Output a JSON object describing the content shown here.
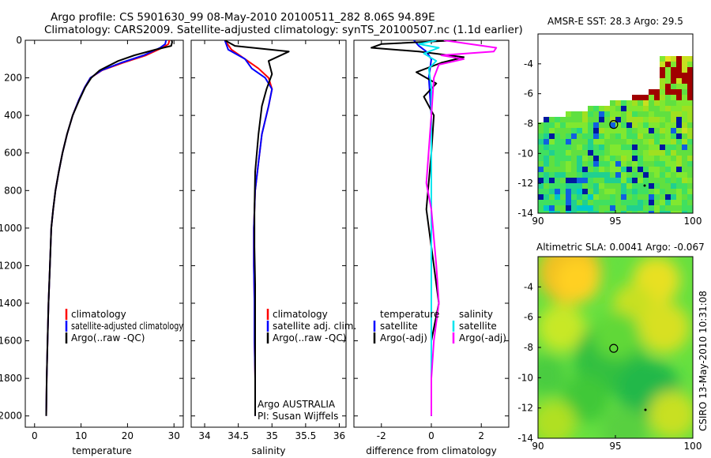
{
  "figure": {
    "title_line1": "Argo profile: CS 5901630_99 08-May-2010 20100511_282 8.06S 94.89E",
    "title_line2": "Climatology: CARS2009. Satellite-adjusted climatology: synTS_20100507.nc (1.1d earlier)",
    "footer_credit": "CSIRO 13-May-2010 10:31:08"
  },
  "chart_data": [
    {
      "id": "temp",
      "type": "line",
      "xlabel": "temperature",
      "xlim": [
        -2,
        32
      ],
      "ylim": [
        0,
        2060
      ],
      "xticks": [
        "0",
        "10",
        "20",
        "30"
      ],
      "yticks": [
        "0",
        "200",
        "400",
        "600",
        "800",
        "1000",
        "1200",
        "1400",
        "1600",
        "1800",
        "2000"
      ],
      "legend": [
        "climatology",
        "satellite-adjusted climatology",
        "Argo(..raw -QC)"
      ],
      "series": [
        {
          "name": "climatology",
          "color": "#ff0000",
          "x": [
            29.0,
            28.8,
            27.5,
            24.0,
            19.0,
            14.5,
            12.0,
            10.8,
            9.5,
            8.2,
            7.0,
            6.0,
            5.2,
            4.5,
            4.0,
            3.6,
            3.3,
            3.0,
            2.8,
            2.6,
            2.5
          ],
          "depth": [
            0,
            20,
            40,
            80,
            120,
            160,
            200,
            250,
            320,
            400,
            500,
            600,
            700,
            800,
            900,
            1000,
            1200,
            1400,
            1600,
            1800,
            2000
          ]
        },
        {
          "name": "satellite-adjusted climatology",
          "color": "#0000ff",
          "x": [
            28.3,
            28.1,
            27.0,
            23.5,
            18.6,
            14.4,
            12.0,
            10.8,
            9.5,
            8.2,
            7.0,
            6.0,
            5.2,
            4.5,
            4.0,
            3.6,
            3.3,
            3.0,
            2.8,
            2.6,
            2.5
          ],
          "depth": [
            0,
            20,
            40,
            80,
            120,
            160,
            200,
            250,
            320,
            400,
            500,
            600,
            700,
            800,
            900,
            1000,
            1200,
            1400,
            1600,
            1800,
            2000
          ]
        },
        {
          "name": "Argo(..raw -QC)",
          "color": "#000000",
          "x": [
            29.5,
            29.6,
            29.4,
            26.0,
            21.5,
            18.0,
            14.0,
            12.2,
            10.9,
            9.6,
            8.2,
            7.0,
            6.0,
            5.2,
            4.5,
            4.0,
            3.6,
            3.3,
            3.0,
            2.8,
            2.6,
            2.5
          ],
          "depth": [
            0,
            10,
            30,
            50,
            80,
            110,
            160,
            200,
            250,
            320,
            400,
            500,
            600,
            700,
            800,
            900,
            1000,
            1200,
            1400,
            1600,
            1800,
            2000
          ]
        }
      ]
    },
    {
      "id": "sal",
      "type": "line",
      "xlabel": "salinity",
      "xlim": [
        33.8,
        36.1
      ],
      "ylim": [
        0,
        2060
      ],
      "xticks": [
        "34",
        "34.5",
        "35",
        "35.5",
        "36"
      ],
      "legend": [
        "climatology",
        "satellite adj. clim.",
        "Argo(..raw -QC)"
      ],
      "annotation": [
        "Argo AUSTRALIA",
        "PI: Susan Wijffels"
      ],
      "series": [
        {
          "name": "climatology",
          "color": "#ff0000",
          "x": [
            34.3,
            34.4,
            34.6,
            34.8,
            34.95,
            35.0,
            34.95,
            34.85,
            34.8,
            34.75,
            34.73,
            34.73,
            34.74,
            34.74,
            34.75,
            34.75
          ],
          "depth": [
            0,
            50,
            100,
            150,
            200,
            260,
            350,
            500,
            650,
            800,
            1000,
            1200,
            1400,
            1600,
            1800,
            2000
          ]
        },
        {
          "name": "satellite adj. clim.",
          "color": "#0000ff",
          "x": [
            34.3,
            34.35,
            34.6,
            34.7,
            34.9,
            35.0,
            34.95,
            34.85,
            34.8,
            34.75,
            34.73,
            34.73,
            34.74,
            34.74,
            34.75,
            34.75
          ],
          "depth": [
            0,
            50,
            100,
            150,
            200,
            260,
            350,
            500,
            650,
            800,
            1000,
            1200,
            1400,
            1600,
            1800,
            2000
          ]
        },
        {
          "name": "Argo(..raw -QC)",
          "color": "#000000",
          "x": [
            34.3,
            34.45,
            35.25,
            34.95,
            35.0,
            34.92,
            34.85,
            34.8,
            34.75,
            34.74,
            34.74,
            34.75,
            34.75,
            34.75,
            34.75
          ],
          "depth": [
            0,
            30,
            60,
            110,
            180,
            260,
            350,
            500,
            700,
            900,
            1100,
            1300,
            1600,
            1800,
            2000
          ]
        }
      ]
    },
    {
      "id": "diff",
      "type": "line",
      "xlabel": "difference from climatology",
      "xlim": [
        -3.1,
        3.1
      ],
      "ylim": [
        0,
        2060
      ],
      "xticks": [
        "-2",
        "0",
        "2"
      ],
      "legend_left_title": "temperature",
      "legend_right_title": "salinity",
      "legend_left": [
        "satellite",
        "Argo(-adj)"
      ],
      "legend_right": [
        "satellite",
        "Argo(-adj)"
      ],
      "series": [
        {
          "name": "temperature satellite",
          "color": "#0000ff",
          "x": [
            -0.7,
            -0.5,
            -0.2,
            0.0,
            -0.1,
            0.0,
            0.0,
            0.0,
            0.0,
            0.0
          ],
          "depth": [
            0,
            30,
            60,
            100,
            200,
            400,
            800,
            1200,
            1600,
            2000
          ]
        },
        {
          "name": "temperature Argo(-adj)",
          "color": "#000000",
          "x": [
            1.0,
            -2.0,
            -2.4,
            -0.5,
            1.3,
            0.4,
            -0.6,
            0.2,
            -0.3,
            0.1,
            0.0,
            -0.2,
            0.1,
            0.3,
            0.0,
            0.0,
            0.0
          ],
          "depth": [
            0,
            20,
            40,
            60,
            90,
            120,
            170,
            230,
            300,
            400,
            600,
            900,
            1200,
            1400,
            1600,
            1800,
            2000
          ]
        },
        {
          "name": "salinity satellite",
          "color": "#00e5ee",
          "x": [
            0.2,
            -0.5,
            0.3,
            -0.3,
            0.2,
            -0.1,
            0.0,
            0.0,
            0.0,
            0.0,
            0.0
          ],
          "depth": [
            0,
            20,
            40,
            70,
            110,
            150,
            250,
            500,
            1000,
            1500,
            2000
          ]
        },
        {
          "name": "salinity Argo(-adj)",
          "color": "#ff00ff",
          "x": [
            0.5,
            2.6,
            2.5,
            0.4,
            1.3,
            0.3,
            0.1,
            0.0,
            -0.2,
            0.0,
            0.2,
            0.3,
            0.1,
            0.0,
            0.0
          ],
          "depth": [
            0,
            40,
            60,
            80,
            100,
            130,
            200,
            400,
            760,
            900,
            1200,
            1400,
            1600,
            1800,
            2000
          ]
        }
      ]
    },
    {
      "id": "sst_map",
      "type": "heatmap",
      "title": "AMSR-E SST: 28.3 Argo: 29.5",
      "xticks": [
        "90",
        "95",
        "100"
      ],
      "yticks": [
        "-4",
        "-6",
        "-8",
        "-10",
        "-12",
        "-14"
      ],
      "xlim": [
        90,
        100
      ],
      "ylim": [
        -14,
        -2
      ],
      "marker": {
        "lon": 94.89,
        "lat": -8.06
      }
    },
    {
      "id": "sla_map",
      "type": "heatmap",
      "title": "Altimetric SLA: 0.0041 Argo: -0.067",
      "xticks": [
        "90",
        "95",
        "100"
      ],
      "yticks": [
        "-4",
        "-6",
        "-8",
        "-10",
        "-12",
        "-14"
      ],
      "xlim": [
        90,
        100
      ],
      "ylim": [
        -14,
        -2
      ],
      "marker": {
        "lon": 94.89,
        "lat": -8.06
      }
    }
  ]
}
